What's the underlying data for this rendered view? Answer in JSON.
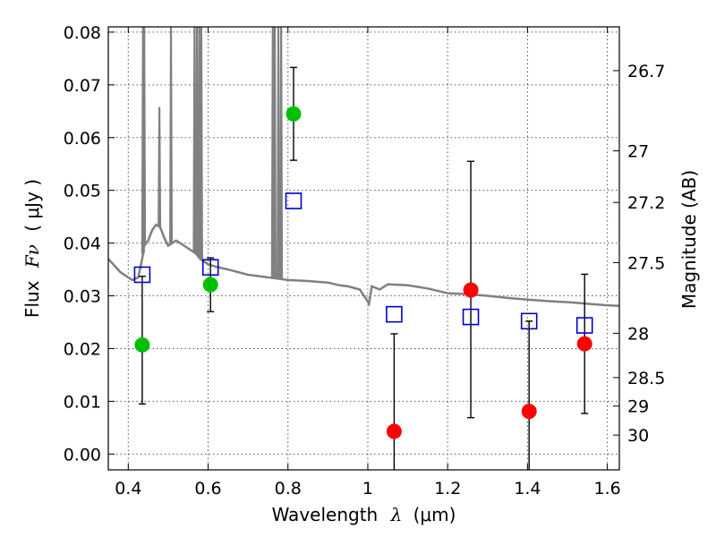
{
  "chart_data": {
    "type": "scatter",
    "xlabel_text": "Wavelength",
    "xlabel_symbol": "λ",
    "xlabel_unit": "(μm)",
    "ylabel_text": "Flux",
    "ylabel_symbol": "Fν",
    "ylabel_unit": "( μJy )",
    "y2label": "Magnitude (AB)",
    "xlim": [
      0.35,
      1.63
    ],
    "ylim": [
      -0.003,
      0.081
    ],
    "grid": true,
    "x_ticks": [
      {
        "value": 0.4,
        "label": "0.4"
      },
      {
        "value": 0.6,
        "label": "0.6"
      },
      {
        "value": 0.8,
        "label": "0.8"
      },
      {
        "value": 1.0,
        "label": "1"
      },
      {
        "value": 1.2,
        "label": "1.2"
      },
      {
        "value": 1.4,
        "label": "1.4"
      },
      {
        "value": 1.6,
        "label": "1.6"
      }
    ],
    "y_ticks": [
      {
        "value": 0.0,
        "label": "0.00"
      },
      {
        "value": 0.01,
        "label": "0.01"
      },
      {
        "value": 0.02,
        "label": "0.02"
      },
      {
        "value": 0.03,
        "label": "0.03"
      },
      {
        "value": 0.04,
        "label": "0.04"
      },
      {
        "value": 0.05,
        "label": "0.05"
      },
      {
        "value": 0.06,
        "label": "0.06"
      },
      {
        "value": 0.07,
        "label": "0.07"
      },
      {
        "value": 0.08,
        "label": "0.08"
      }
    ],
    "y2_ticks": [
      {
        "flux": 0.0727,
        "label": "26.7"
      },
      {
        "flux": 0.0575,
        "label": "27"
      },
      {
        "flux": 0.0477,
        "label": "27.2"
      },
      {
        "flux": 0.0363,
        "label": "27.5"
      },
      {
        "flux": 0.0229,
        "label": "28"
      },
      {
        "flux": 0.0145,
        "label": "28.5"
      },
      {
        "flux": 0.0091,
        "label": "29"
      },
      {
        "flux": 0.0036,
        "label": "30"
      }
    ],
    "series": [
      {
        "color": "#00c000",
        "marker": "circle",
        "points": [
          {
            "x": 0.435,
            "y": 0.0207,
            "yerr_low": 0.0095,
            "yerr_high": 0.0337
          },
          {
            "x": 0.606,
            "y": 0.0321,
            "yerr_low": 0.027,
            "yerr_high": 0.0372
          },
          {
            "x": 0.814,
            "y": 0.0645,
            "yerr_low": 0.0557,
            "yerr_high": 0.0733
          }
        ]
      },
      {
        "color": "#ff0000",
        "marker": "circle",
        "points": [
          {
            "x": 1.066,
            "y": 0.0043,
            "yerr_low": -0.0035,
            "yerr_high": 0.0228
          },
          {
            "x": 1.258,
            "y": 0.0311,
            "yerr_low": 0.0069,
            "yerr_high": 0.0555
          },
          {
            "x": 1.404,
            "y": 0.0081,
            "yerr_low": -0.0035,
            "yerr_high": 0.0252
          },
          {
            "x": 1.543,
            "y": 0.0209,
            "yerr_low": 0.0077,
            "yerr_high": 0.0341
          }
        ]
      },
      {
        "color": "#0000cc",
        "marker": "open-square",
        "points": [
          {
            "x": 0.435,
            "y": 0.034
          },
          {
            "x": 0.606,
            "y": 0.0354
          },
          {
            "x": 0.814,
            "y": 0.048
          },
          {
            "x": 1.066,
            "y": 0.0265
          },
          {
            "x": 1.258,
            "y": 0.026
          },
          {
            "x": 1.404,
            "y": 0.0252
          },
          {
            "x": 1.543,
            "y": 0.0244
          }
        ]
      }
    ],
    "model_spectrum": {
      "color": "#808080",
      "baseline": [
        [
          0.35,
          0.037
        ],
        [
          0.38,
          0.0345
        ],
        [
          0.41,
          0.033
        ],
        [
          0.425,
          0.0335
        ],
        [
          0.435,
          0.037
        ],
        [
          0.44,
          0.0395
        ],
        [
          0.45,
          0.0405
        ],
        [
          0.46,
          0.0425
        ],
        [
          0.47,
          0.0435
        ],
        [
          0.48,
          0.043
        ],
        [
          0.49,
          0.041
        ],
        [
          0.5,
          0.0395
        ],
        [
          0.52,
          0.0405
        ],
        [
          0.54,
          0.0395
        ],
        [
          0.55,
          0.039
        ],
        [
          0.57,
          0.038
        ],
        [
          0.58,
          0.037
        ],
        [
          0.6,
          0.036
        ],
        [
          0.62,
          0.0355
        ],
        [
          0.65,
          0.035
        ],
        [
          0.7,
          0.034
        ],
        [
          0.75,
          0.0335
        ],
        [
          0.8,
          0.033
        ],
        [
          0.85,
          0.0328
        ],
        [
          0.9,
          0.0325
        ],
        [
          0.93,
          0.032
        ],
        [
          0.95,
          0.0318
        ],
        [
          0.98,
          0.0312
        ],
        [
          0.995,
          0.0295
        ],
        [
          1.003,
          0.0285
        ],
        [
          1.01,
          0.0318
        ],
        [
          1.03,
          0.0312
        ],
        [
          1.05,
          0.0322
        ],
        [
          1.1,
          0.032
        ],
        [
          1.15,
          0.0314
        ],
        [
          1.2,
          0.0305
        ],
        [
          1.25,
          0.0303
        ],
        [
          1.3,
          0.03
        ],
        [
          1.35,
          0.0296
        ],
        [
          1.4,
          0.0293
        ],
        [
          1.45,
          0.029
        ],
        [
          1.5,
          0.0288
        ],
        [
          1.55,
          0.0285
        ],
        [
          1.6,
          0.0282
        ],
        [
          1.63,
          0.0281
        ]
      ],
      "emission_lines": [
        {
          "x": 0.437,
          "peak": 0.081
        },
        {
          "x": 0.44,
          "peak": 0.081
        },
        {
          "x": 0.478,
          "peak": 0.0658
        },
        {
          "x": 0.507,
          "peak": 0.081
        },
        {
          "x": 0.566,
          "peak": 0.081
        },
        {
          "x": 0.572,
          "peak": 0.081
        },
        {
          "x": 0.578,
          "peak": 0.081
        },
        {
          "x": 0.583,
          "peak": 0.081
        },
        {
          "x": 0.762,
          "peak": 0.081
        },
        {
          "x": 0.767,
          "peak": 0.081
        },
        {
          "x": 0.776,
          "peak": 0.081
        },
        {
          "x": 0.783,
          "peak": 0.081
        }
      ]
    }
  }
}
